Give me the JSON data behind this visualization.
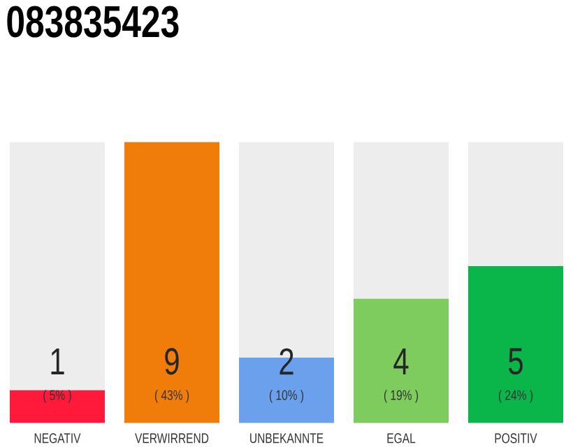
{
  "chart_data": {
    "type": "bar",
    "title": "083835423",
    "data_labels": false,
    "categories": [
      "NEGATIV",
      "VERWIRREND",
      "UNBEKANNTE",
      "EGAL",
      "POSITIV"
    ],
    "values": [
      5,
      43,
      10,
      19,
      24
    ],
    "value_labels": [
      "( 5% )",
      "( 43% )",
      "( 10% )",
      "( 19% )",
      "( 24% )"
    ],
    "colors": [
      "#ff1a3c",
      "#f07d0a",
      "#6aa0ec",
      "#7ecb5e",
      "#0ab54a"
    ],
    "annotations": [
      "1",
      "9",
      "2",
      "4",
      "5"
    ]
  }
}
